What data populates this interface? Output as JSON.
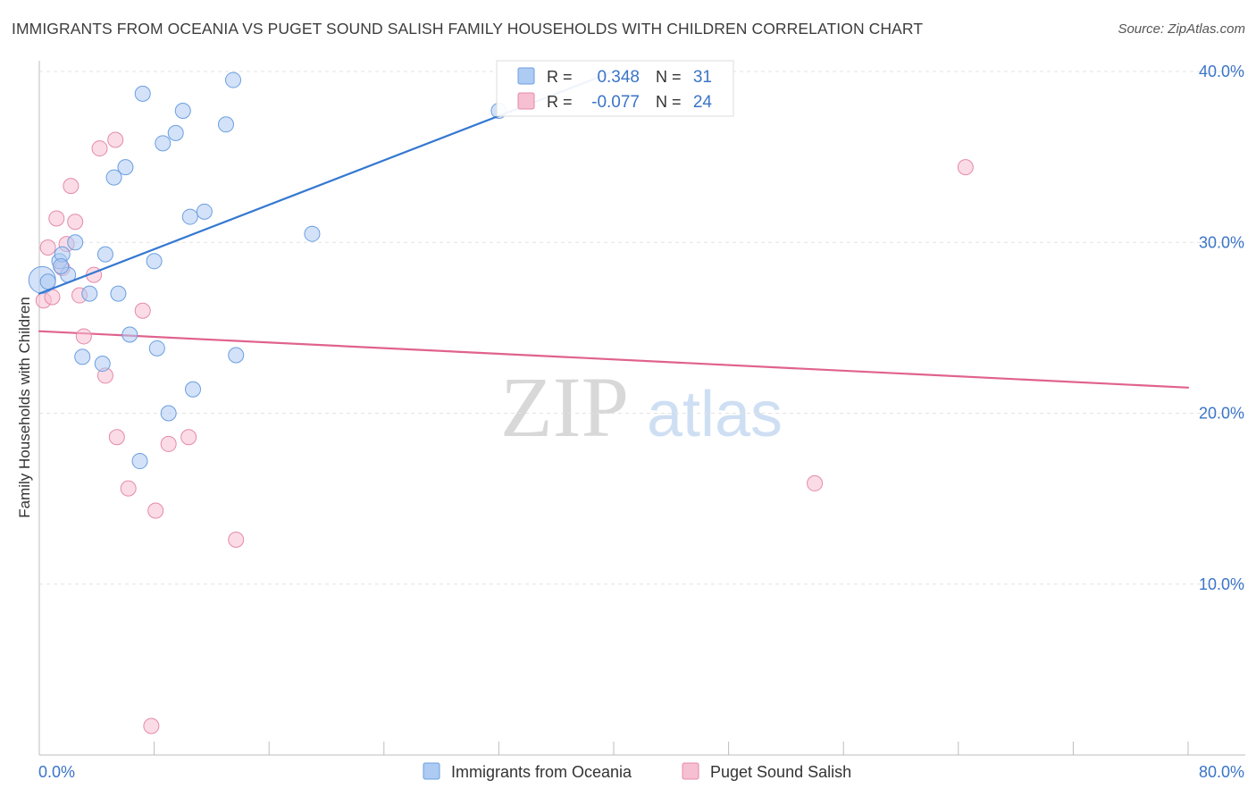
{
  "header": {
    "title": "IMMIGRANTS FROM OCEANIA VS PUGET SOUND SALISH FAMILY HOUSEHOLDS WITH CHILDREN CORRELATION CHART",
    "source": "Source: ZipAtlas.com"
  },
  "watermark": {
    "zip": "ZIP",
    "atlas": "atlas"
  },
  "legend_box": {
    "series1": {
      "r_label": "R =",
      "r_value": "0.348",
      "n_label": "N =",
      "n_value": "31"
    },
    "series2": {
      "r_label": "R =",
      "r_value": "-0.077",
      "n_label": "N =",
      "n_value": "24"
    }
  },
  "colors": {
    "blue_fill": "#aecbf3",
    "blue_stroke": "#6b9fe0",
    "blue_line": "#3478d1",
    "pink_fill": "#f7bfd2",
    "pink_stroke": "#e58aab",
    "pink_line": "#e0628d",
    "value_text": "#3a74c8",
    "grid": "#e3e3e3"
  },
  "chart_data": {
    "type": "scatter",
    "title": "IMMIGRANTS FROM OCEANIA VS PUGET SOUND SALISH FAMILY HOUSEHOLDS WITH CHILDREN CORRELATION CHART",
    "xlabel": "",
    "ylabel": "Family Households with Children",
    "xlim": [
      0,
      80
    ],
    "ylim": [
      0,
      40
    ],
    "x_tick_labels": [
      "0.0%",
      "80.0%"
    ],
    "y_ticks": [
      10,
      20,
      30,
      40
    ],
    "y_tick_labels": [
      "10.0%",
      "20.0%",
      "30.0%",
      "40.0%"
    ],
    "grid": true,
    "legend_position": "bottom",
    "series": [
      {
        "name": "Immigrants from Oceania",
        "color": "blue",
        "r": 0.348,
        "n": 31,
        "trend": {
          "x": [
            0,
            40
          ],
          "y": [
            27.0,
            40.0
          ]
        },
        "points": [
          {
            "x": 0.2,
            "y": 27.8,
            "big": true
          },
          {
            "x": 0.6,
            "y": 27.7
          },
          {
            "x": 1.4,
            "y": 28.9
          },
          {
            "x": 1.6,
            "y": 29.3
          },
          {
            "x": 2.0,
            "y": 28.1
          },
          {
            "x": 2.5,
            "y": 30.0
          },
          {
            "x": 3.0,
            "y": 23.3
          },
          {
            "x": 3.5,
            "y": 27.0
          },
          {
            "x": 4.4,
            "y": 22.9
          },
          {
            "x": 4.6,
            "y": 29.3
          },
          {
            "x": 5.5,
            "y": 27.0
          },
          {
            "x": 5.2,
            "y": 33.8
          },
          {
            "x": 6.0,
            "y": 34.4
          },
          {
            "x": 6.3,
            "y": 24.6
          },
          {
            "x": 7.0,
            "y": 17.2
          },
          {
            "x": 7.2,
            "y": 38.7
          },
          {
            "x": 8.0,
            "y": 28.9
          },
          {
            "x": 8.2,
            "y": 23.8
          },
          {
            "x": 8.6,
            "y": 35.8
          },
          {
            "x": 9.0,
            "y": 20.0
          },
          {
            "x": 9.5,
            "y": 36.4
          },
          {
            "x": 10.0,
            "y": 37.7
          },
          {
            "x": 10.5,
            "y": 31.5
          },
          {
            "x": 10.7,
            "y": 21.4
          },
          {
            "x": 11.5,
            "y": 31.8
          },
          {
            "x": 13.0,
            "y": 36.9
          },
          {
            "x": 13.5,
            "y": 39.5
          },
          {
            "x": 13.7,
            "y": 23.4
          },
          {
            "x": 19.0,
            "y": 30.5
          },
          {
            "x": 32.0,
            "y": 37.7
          },
          {
            "x": 1.5,
            "y": 28.6
          }
        ]
      },
      {
        "name": "Puget Sound Salish",
        "color": "pink",
        "r": -0.077,
        "n": 24,
        "trend": {
          "x": [
            0,
            80
          ],
          "y": [
            24.8,
            21.5
          ]
        },
        "points": [
          {
            "x": 0.3,
            "y": 26.6
          },
          {
            "x": 0.6,
            "y": 29.7
          },
          {
            "x": 0.9,
            "y": 26.8
          },
          {
            "x": 1.2,
            "y": 31.4
          },
          {
            "x": 1.6,
            "y": 28.5
          },
          {
            "x": 1.9,
            "y": 29.9
          },
          {
            "x": 2.2,
            "y": 33.3
          },
          {
            "x": 2.5,
            "y": 31.2
          },
          {
            "x": 2.8,
            "y": 26.9
          },
          {
            "x": 3.1,
            "y": 24.5
          },
          {
            "x": 3.8,
            "y": 28.1
          },
          {
            "x": 4.2,
            "y": 35.5
          },
          {
            "x": 4.6,
            "y": 22.2
          },
          {
            "x": 5.3,
            "y": 36.0
          },
          {
            "x": 5.4,
            "y": 18.6
          },
          {
            "x": 6.2,
            "y": 15.6
          },
          {
            "x": 7.2,
            "y": 26.0
          },
          {
            "x": 7.8,
            "y": 1.7
          },
          {
            "x": 8.1,
            "y": 14.3
          },
          {
            "x": 9.0,
            "y": 18.2
          },
          {
            "x": 10.4,
            "y": 18.6
          },
          {
            "x": 13.7,
            "y": 12.6
          },
          {
            "x": 54.0,
            "y": 15.9
          },
          {
            "x": 64.5,
            "y": 34.4
          }
        ]
      }
    ]
  }
}
